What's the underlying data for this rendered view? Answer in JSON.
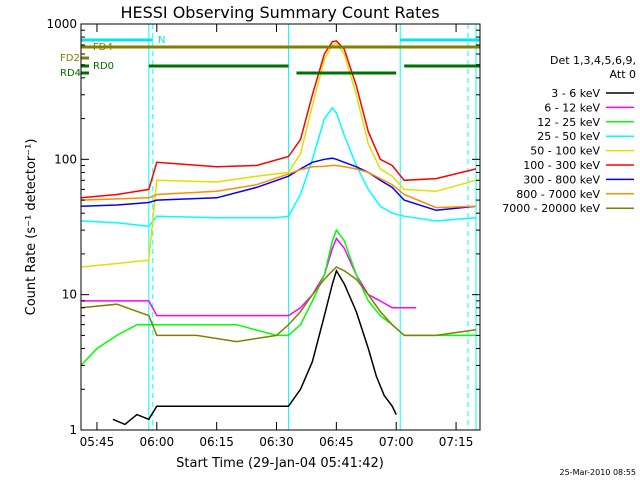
{
  "chart_data": {
    "type": "line",
    "title": "HESSI Observing Summary Count Rates",
    "xlabel": "Start Time (29-Jan-04 05:41:42)",
    "ylabel": "Count Rate (s⁻¹ detector⁻¹)",
    "yscale": "log",
    "xlim": [
      "05:41",
      "07:21"
    ],
    "ylim": [
      1,
      1000
    ],
    "xticks": [
      "05:45",
      "06:00",
      "06:15",
      "06:30",
      "06:45",
      "07:00",
      "07:15"
    ],
    "yticks": [
      "1",
      "10",
      "100",
      "1000"
    ],
    "legend": {
      "placement": "right",
      "header": [
        "Det 1,3,4,5,6,9,",
        "Att 0"
      ]
    },
    "flags": [
      {
        "label": "FD4",
        "color": "#808000",
        "segments": [
          [
            "05:41",
            "07:21"
          ]
        ]
      },
      {
        "label": "FD2",
        "color": "#808000",
        "segments": [
          [
            "05:41",
            "05:43"
          ]
        ]
      },
      {
        "label": "RD0",
        "color": "#007000",
        "segments": [
          [
            "05:41",
            "05:43"
          ],
          [
            "05:58",
            "06:33"
          ],
          [
            "07:02",
            "07:21"
          ]
        ]
      },
      {
        "label": "RD4",
        "color": "#007000",
        "segments": [
          [
            "05:41",
            "05:43"
          ],
          [
            "06:35",
            "07:00"
          ]
        ]
      },
      {
        "label": "N",
        "color": "#00e5ee",
        "segments": [
          [
            "05:41",
            "05:59"
          ],
          [
            "07:01",
            "07:21"
          ]
        ]
      }
    ],
    "markers": {
      "solid_vlines": [
        "05:41",
        "05:58",
        "06:33",
        "07:01",
        "07:20"
      ],
      "dashed_vlines": [
        "05:59",
        "07:18"
      ]
    },
    "series": [
      {
        "name": "3 - 6 keV",
        "color": "#000000",
        "x": [
          "05:49",
          "05:52",
          "05:55",
          "05:58",
          "06:00",
          "06:10",
          "06:20",
          "06:30",
          "06:33",
          "06:36",
          "06:39",
          "06:42",
          "06:44",
          "06:45",
          "06:47",
          "06:50",
          "06:53",
          "06:55",
          "06:57",
          "06:59",
          "07:00"
        ],
        "y": [
          1.2,
          1.1,
          1.3,
          1.2,
          1.5,
          1.5,
          1.5,
          1.5,
          1.5,
          2.0,
          3.2,
          7.0,
          12,
          15,
          12,
          7.5,
          4.0,
          2.5,
          1.8,
          1.5,
          1.3
        ]
      },
      {
        "name": "6 - 12 keV",
        "color": "#ff00ff",
        "x": [
          "05:41",
          "05:50",
          "05:58",
          "06:00",
          "06:15",
          "06:30",
          "06:33",
          "06:36",
          "06:39",
          "06:42",
          "06:44",
          "06:45",
          "06:47",
          "06:50",
          "06:53",
          "06:56",
          "06:59",
          "07:02",
          "07:05"
        ],
        "y": [
          9,
          9,
          9,
          7,
          7,
          7,
          7,
          8,
          10,
          14,
          22,
          26,
          22,
          14,
          10,
          9,
          8,
          8,
          8
        ]
      },
      {
        "name": "12 - 25 keV",
        "color": "#00ff00",
        "x": [
          "05:41",
          "05:45",
          "05:50",
          "05:55",
          "05:58",
          "06:00",
          "06:10",
          "06:20",
          "06:30",
          "06:33",
          "06:36",
          "06:39",
          "06:42",
          "06:44",
          "06:45",
          "06:47",
          "06:50",
          "06:53",
          "06:56",
          "06:59",
          "07:02",
          "07:10",
          "07:20"
        ],
        "y": [
          3,
          4,
          5,
          6,
          6,
          6,
          6,
          6,
          5,
          5,
          6,
          9,
          14,
          25,
          30,
          25,
          14,
          9,
          7,
          6,
          5,
          5,
          5
        ]
      },
      {
        "name": "25 - 50 keV",
        "color": "#00ffff",
        "x": [
          "05:41",
          "05:50",
          "05:58",
          "06:00",
          "06:15",
          "06:30",
          "06:33",
          "06:36",
          "06:39",
          "06:42",
          "06:44",
          "06:45",
          "06:47",
          "06:50",
          "06:53",
          "06:56",
          "06:59",
          "07:02",
          "07:10",
          "07:20"
        ],
        "y": [
          35,
          34,
          32,
          38,
          37,
          37,
          38,
          55,
          100,
          200,
          240,
          220,
          150,
          90,
          60,
          45,
          40,
          38,
          35,
          37
        ]
      },
      {
        "name": "50 - 100 keV",
        "color": "#e0e000",
        "x": [
          "05:41",
          "05:50",
          "05:58",
          "06:00",
          "06:15",
          "06:25",
          "06:33",
          "06:36",
          "06:39",
          "06:42",
          "06:44",
          "06:45",
          "06:47",
          "06:50",
          "06:53",
          "06:56",
          "06:59",
          "07:02",
          "07:10",
          "07:20"
        ],
        "y": [
          16,
          17,
          18,
          70,
          68,
          75,
          80,
          110,
          250,
          550,
          700,
          720,
          600,
          300,
          130,
          85,
          75,
          60,
          58,
          70
        ]
      },
      {
        "name": "100 - 300 keV",
        "color": "#ff0000",
        "x": [
          "05:41",
          "05:50",
          "05:58",
          "06:00",
          "06:15",
          "06:25",
          "06:33",
          "06:36",
          "06:39",
          "06:42",
          "06:44",
          "06:45",
          "06:47",
          "06:50",
          "06:53",
          "06:56",
          "06:59",
          "07:02",
          "07:10",
          "07:20"
        ],
        "y": [
          52,
          55,
          60,
          95,
          88,
          90,
          105,
          140,
          300,
          600,
          740,
          750,
          650,
          350,
          160,
          100,
          90,
          70,
          72,
          85
        ]
      },
      {
        "name": "300 - 800 keV",
        "color": "#0000ff",
        "x": [
          "05:41",
          "05:50",
          "05:58",
          "06:00",
          "06:15",
          "06:25",
          "06:33",
          "06:36",
          "06:39",
          "06:42",
          "06:44",
          "06:45",
          "06:47",
          "06:50",
          "06:53",
          "06:56",
          "06:59",
          "07:02",
          "07:10",
          "07:20"
        ],
        "y": [
          45,
          46,
          48,
          50,
          52,
          62,
          75,
          85,
          95,
          100,
          102,
          100,
          95,
          88,
          80,
          70,
          62,
          50,
          42,
          45
        ]
      },
      {
        "name": "800 - 7000 keV",
        "color": "#ff8c00",
        "x": [
          "05:41",
          "05:50",
          "05:58",
          "06:00",
          "06:15",
          "06:25",
          "06:33",
          "06:36",
          "06:39",
          "06:42",
          "06:44",
          "06:45",
          "06:47",
          "06:50",
          "06:53",
          "06:56",
          "06:59",
          "07:02",
          "07:10",
          "07:20"
        ],
        "y": [
          50,
          51,
          52,
          55,
          58,
          65,
          78,
          84,
          88,
          89,
          90,
          90,
          88,
          85,
          80,
          72,
          65,
          55,
          44,
          45
        ]
      },
      {
        "name": "7000 - 20000 keV",
        "color": "#808000",
        "x": [
          "05:41",
          "05:50",
          "05:58",
          "06:00",
          "06:10",
          "06:20",
          "06:30",
          "06:33",
          "06:36",
          "06:39",
          "06:42",
          "06:44",
          "06:45",
          "06:47",
          "06:50",
          "06:53",
          "06:56",
          "06:59",
          "07:02",
          "07:10",
          "07:20"
        ],
        "y": [
          8,
          8.5,
          7,
          5,
          5,
          4.5,
          5,
          6,
          7.5,
          10,
          13,
          15,
          16,
          15,
          13,
          10,
          7.5,
          6,
          5,
          5,
          5.5
        ]
      }
    ]
  },
  "timestamp": "25-Mar-2010 08:55"
}
